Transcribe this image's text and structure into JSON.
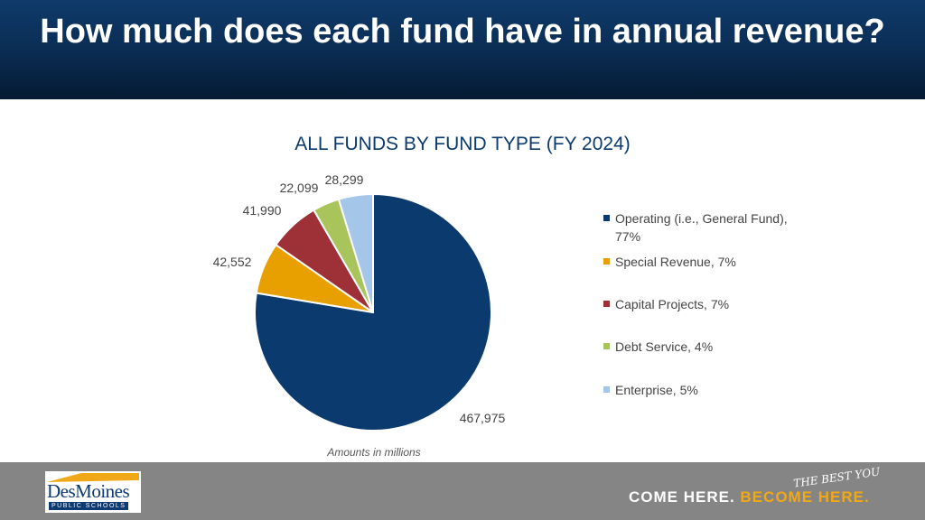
{
  "slide_title": "How much does each fund have in annual revenue?",
  "chart_data": {
    "type": "pie",
    "title": "ALL FUNDS BY FUND TYPE (FY 2024)",
    "slices": [
      {
        "label": "Operating (i.e., General Fund), 77%",
        "value": 467975,
        "value_label": "467,975",
        "color": "#0b3a6e"
      },
      {
        "label": "Special Revenue, 7%",
        "value": 42552,
        "value_label": "42,552",
        "color": "#e8a000"
      },
      {
        "label": "Capital Projects, 7%",
        "value": 41990,
        "value_label": "41,990",
        "color": "#9e3038"
      },
      {
        "label": "Debt Service, 4%",
        "value": 22099,
        "value_label": "22,099",
        "color": "#a9c45a"
      },
      {
        "label": "Enterprise, 5%",
        "value": 28299,
        "value_label": "28,299",
        "color": "#a4c6e8"
      }
    ],
    "start": "12 o'clock, clockwise",
    "legend_position": "right",
    "note": "Amounts in millions"
  },
  "footer": {
    "logo_main": "DesMoines",
    "logo_sub": "PUBLIC SCHOOLS",
    "tagline_part1": "COME HERE.",
    "tagline_part2": "BECOME",
    "tagline_part3": "HERE.",
    "script_text": "THE BEST YOU"
  }
}
